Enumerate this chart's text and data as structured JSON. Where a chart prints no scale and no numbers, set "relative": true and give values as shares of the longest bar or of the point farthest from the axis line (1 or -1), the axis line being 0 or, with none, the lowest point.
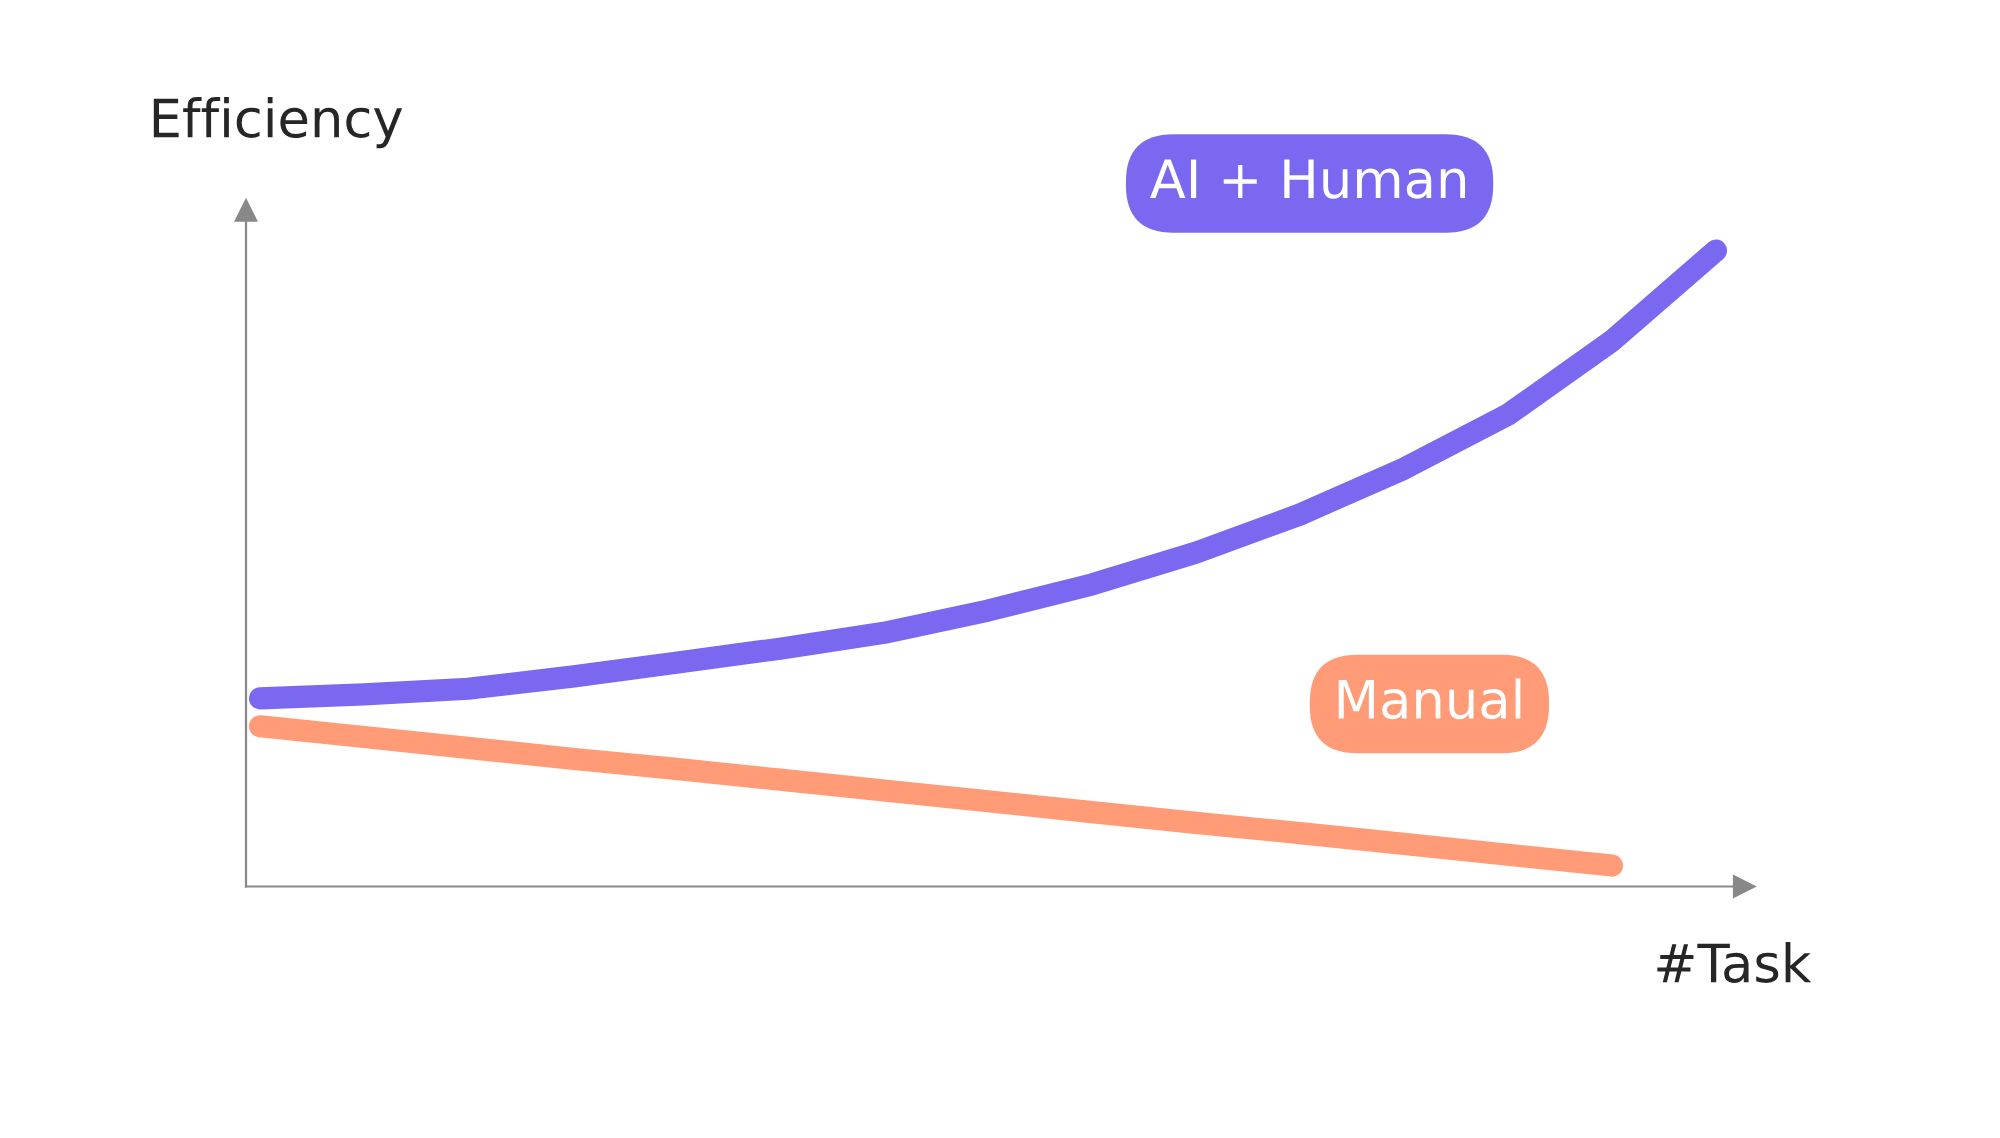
{
  "chart_data": {
    "type": "line",
    "xlabel": "#Task",
    "ylabel": "Efficiency",
    "relative": true,
    "categories": [
      null,
      null,
      null,
      null,
      null,
      null,
      null,
      null,
      null,
      null,
      null,
      null,
      null,
      null,
      null
    ],
    "series": [
      {
        "name": "AI + Human",
        "color": "#7b68f0",
        "values": [
          0.296,
          0.302,
          0.311,
          0.33,
          0.352,
          0.374,
          0.399,
          0.434,
          0.475,
          0.525,
          0.585,
          0.657,
          0.742,
          0.858,
          1
        ]
      },
      {
        "name": "Manual",
        "color": "#ff9b76",
        "values": [
          0.252,
          0.235,
          0.218,
          0.201,
          0.185,
          0.168,
          0.151,
          0.134,
          0.117,
          0.1,
          0.084,
          0.067,
          0.05,
          0.033,
          null
        ]
      }
    ]
  }
}
